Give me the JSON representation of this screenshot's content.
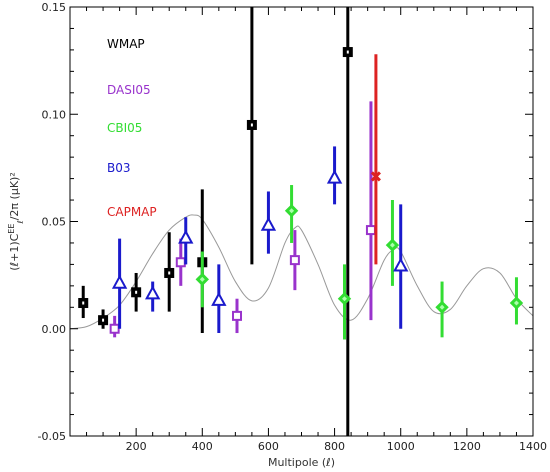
{
  "chart_data": {
    "type": "scatter",
    "title": "",
    "xlabel": "Multipole (ℓ)",
    "ylabel": "(ℓ+1)C_ℓ^EE/2π (μK)²",
    "xlim": [
      0,
      1400
    ],
    "ylim": [
      -0.05,
      0.15
    ],
    "x_ticks": [
      "200",
      "400",
      "600",
      "800",
      "1000",
      "1200",
      "1400"
    ],
    "y_ticks": [
      "-0.05",
      "0.00",
      "0.05",
      "0.10",
      "0.15"
    ],
    "grid": false,
    "legend_position": "left",
    "series": [
      {
        "name": "WMAP",
        "color": "#000000",
        "marker": "square",
        "x": [
          40,
          100,
          200,
          300,
          400,
          550,
          840
        ],
        "y": [
          0.012,
          0.004,
          0.017,
          0.026,
          0.031,
          0.095,
          0.129
        ],
        "y_low": [
          0.005,
          0.0,
          0.008,
          0.008,
          -0.002,
          0.03,
          -0.06
        ],
        "y_high": [
          0.02,
          0.009,
          0.026,
          0.045,
          0.065,
          0.16,
          0.16
        ]
      },
      {
        "name": "DASI05",
        "color": "#9933cc",
        "marker": "open-square",
        "x": [
          135,
          335,
          505,
          680,
          910
        ],
        "y": [
          0.0,
          0.031,
          0.006,
          0.032,
          0.046
        ],
        "y_low": [
          -0.004,
          0.02,
          -0.002,
          0.018,
          0.004
        ],
        "y_high": [
          0.006,
          0.042,
          0.014,
          0.046,
          0.106
        ]
      },
      {
        "name": "CBI05",
        "color": "#33dd33",
        "marker": "diamond",
        "x": [
          400,
          670,
          830,
          975,
          1125,
          1350
        ],
        "y": [
          0.023,
          0.055,
          0.014,
          0.039,
          0.01,
          0.012
        ],
        "y_low": [
          0.01,
          0.04,
          -0.005,
          0.02,
          -0.004,
          0.002
        ],
        "y_high": [
          0.036,
          0.067,
          0.03,
          0.06,
          0.022,
          0.024
        ]
      },
      {
        "name": "B03",
        "color": "#1a1acc",
        "marker": "triangle",
        "x": [
          150,
          250,
          350,
          450,
          600,
          800,
          1000
        ],
        "y": [
          0.021,
          0.016,
          0.042,
          0.013,
          0.048,
          0.07,
          0.029
        ],
        "y_low": [
          0.0,
          0.008,
          0.03,
          -0.002,
          0.035,
          0.058,
          0.0
        ],
        "y_high": [
          0.042,
          0.022,
          0.052,
          0.03,
          0.064,
          0.085,
          0.058
        ]
      },
      {
        "name": "CAPMAP",
        "color": "#dd2222",
        "marker": "cross",
        "x": [
          925
        ],
        "y": [
          0.071
        ],
        "y_low": [
          0.03
        ],
        "y_high": [
          0.128
        ]
      }
    ],
    "model_curve": {
      "color": "#999999",
      "x": [
        0,
        50,
        100,
        150,
        200,
        250,
        300,
        350,
        375,
        400,
        450,
        500,
        550,
        600,
        650,
        680,
        700,
        750,
        800,
        850,
        900,
        950,
        980,
        1000,
        1050,
        1100,
        1150,
        1200,
        1250,
        1300,
        1350,
        1400
      ],
      "y": [
        0.0,
        0.001,
        0.005,
        0.011,
        0.022,
        0.035,
        0.046,
        0.052,
        0.053,
        0.051,
        0.038,
        0.022,
        0.013,
        0.019,
        0.04,
        0.047,
        0.046,
        0.03,
        0.011,
        0.004,
        0.014,
        0.032,
        0.037,
        0.036,
        0.02,
        0.008,
        0.009,
        0.02,
        0.028,
        0.026,
        0.014,
        0.006
      ]
    }
  }
}
